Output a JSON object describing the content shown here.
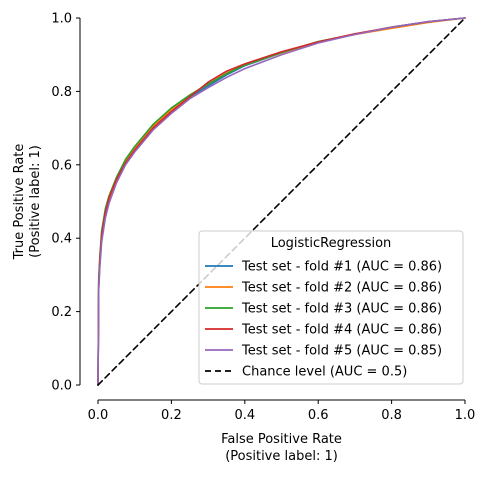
{
  "chart_data": {
    "type": "line",
    "xlabel": "False Positive Rate",
    "xlabel_sub": "(Positive label: 1)",
    "ylabel": "True Positive Rate",
    "ylabel_sub": "(Positive label: 1)",
    "xlim": [
      0,
      1
    ],
    "ylim": [
      0,
      1
    ],
    "xticks": [
      "0.0",
      "0.2",
      "0.4",
      "0.6",
      "0.8",
      "1.0"
    ],
    "yticks": [
      "0.0",
      "0.2",
      "0.4",
      "0.6",
      "0.8",
      "1.0"
    ],
    "grid": false,
    "legend": {
      "title": "LogisticRegression",
      "placement": "lower right"
    },
    "series": [
      {
        "name": "Test set - fold #1 (AUC = 0.86)",
        "color": "#1f77b4",
        "x": [
          0,
          0.002,
          0.005,
          0.01,
          0.02,
          0.03,
          0.05,
          0.075,
          0.1,
          0.15,
          0.2,
          0.25,
          0.3,
          0.35,
          0.4,
          0.5,
          0.6,
          0.7,
          0.8,
          0.9,
          1.0
        ],
        "y": [
          0,
          0.28,
          0.34,
          0.41,
          0.47,
          0.51,
          0.56,
          0.61,
          0.645,
          0.7,
          0.745,
          0.785,
          0.815,
          0.845,
          0.87,
          0.905,
          0.935,
          0.955,
          0.975,
          0.99,
          1.0
        ]
      },
      {
        "name": "Test set - fold #2 (AUC = 0.86)",
        "color": "#ff7f0e",
        "x": [
          0,
          0.002,
          0.005,
          0.01,
          0.02,
          0.03,
          0.05,
          0.075,
          0.1,
          0.15,
          0.2,
          0.25,
          0.3,
          0.35,
          0.4,
          0.5,
          0.6,
          0.7,
          0.8,
          0.9,
          1.0
        ],
        "y": [
          0,
          0.27,
          0.33,
          0.4,
          0.465,
          0.505,
          0.555,
          0.61,
          0.645,
          0.705,
          0.75,
          0.79,
          0.82,
          0.85,
          0.872,
          0.905,
          0.935,
          0.955,
          0.972,
          0.988,
          1.0
        ]
      },
      {
        "name": "Test set - fold #3 (AUC = 0.86)",
        "color": "#2ca02c",
        "x": [
          0,
          0.002,
          0.005,
          0.01,
          0.02,
          0.03,
          0.05,
          0.075,
          0.1,
          0.15,
          0.2,
          0.25,
          0.3,
          0.35,
          0.4,
          0.5,
          0.6,
          0.7,
          0.8,
          0.9,
          1.0
        ],
        "y": [
          0,
          0.29,
          0.35,
          0.42,
          0.48,
          0.515,
          0.565,
          0.615,
          0.65,
          0.71,
          0.755,
          0.79,
          0.82,
          0.848,
          0.872,
          0.906,
          0.936,
          0.956,
          0.975,
          0.99,
          1.0
        ]
      },
      {
        "name": "Test set - fold #4 (AUC = 0.86)",
        "color": "#d62728",
        "x": [
          0,
          0.002,
          0.005,
          0.01,
          0.02,
          0.03,
          0.05,
          0.075,
          0.1,
          0.15,
          0.2,
          0.25,
          0.3,
          0.35,
          0.4,
          0.5,
          0.6,
          0.7,
          0.8,
          0.9,
          1.0
        ],
        "y": [
          0,
          0.27,
          0.34,
          0.41,
          0.47,
          0.51,
          0.56,
          0.605,
          0.64,
          0.7,
          0.745,
          0.785,
          0.825,
          0.855,
          0.875,
          0.908,
          0.935,
          0.957,
          0.975,
          0.99,
          1.0
        ]
      },
      {
        "name": "Test set - fold #5 (AUC = 0.85)",
        "color": "#9467bd",
        "x": [
          0,
          0.002,
          0.005,
          0.01,
          0.02,
          0.03,
          0.05,
          0.075,
          0.1,
          0.15,
          0.2,
          0.25,
          0.3,
          0.35,
          0.4,
          0.5,
          0.6,
          0.7,
          0.8,
          0.9,
          1.0
        ],
        "y": [
          0,
          0.26,
          0.32,
          0.39,
          0.455,
          0.495,
          0.55,
          0.6,
          0.635,
          0.695,
          0.74,
          0.78,
          0.81,
          0.838,
          0.862,
          0.9,
          0.932,
          0.955,
          0.975,
          0.99,
          1.0
        ]
      },
      {
        "name": "Chance level (AUC = 0.5)",
        "color": "#000000",
        "dashed": true,
        "x": [
          0,
          1
        ],
        "y": [
          0,
          1
        ]
      }
    ]
  }
}
